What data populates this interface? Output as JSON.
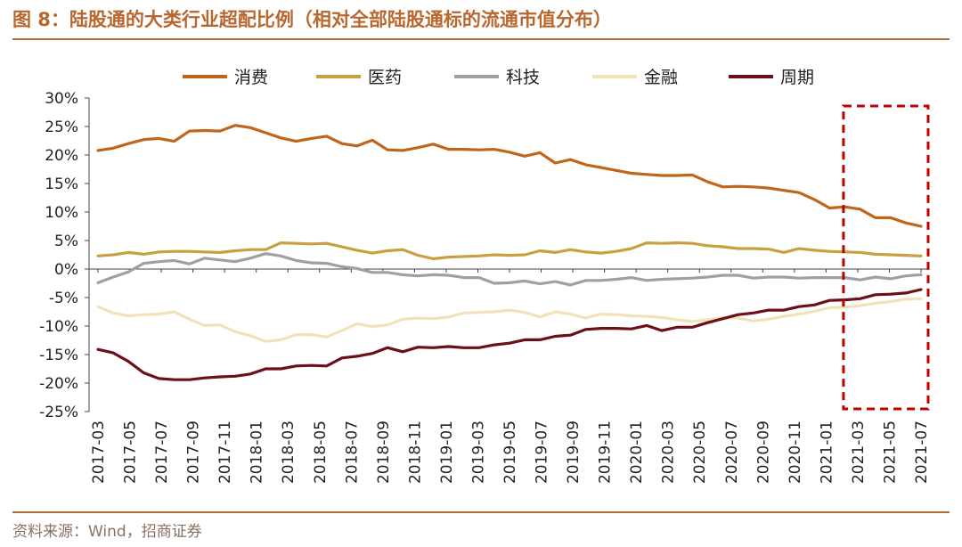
{
  "header": {
    "title": "图 8：陆股通的大类行业超配比例（相对全部陆股通标的流通市值分布）"
  },
  "footer": {
    "source": "资料来源：Wind，招商证券"
  },
  "chart_data": {
    "type": "line",
    "title": "",
    "xlabel": "",
    "ylabel": "",
    "ylim": [
      -25,
      30
    ],
    "y_tick_step": 5,
    "y_ticks": [
      "30%",
      "25%",
      "20%",
      "15%",
      "10%",
      "5%",
      "0%",
      "-5%",
      "-10%",
      "-15%",
      "-20%",
      "-25%"
    ],
    "x_tick_labels": [
      "2017-03",
      "2017-05",
      "2017-07",
      "2017-09",
      "2017-11",
      "2018-01",
      "2018-03",
      "2018-05",
      "2018-07",
      "2018-09",
      "2018-11",
      "2019-01",
      "2019-03",
      "2019-05",
      "2019-07",
      "2019-09",
      "2019-11",
      "2020-01",
      "2020-03",
      "2020-05",
      "2020-07",
      "2020-09",
      "2020-11",
      "2021-01",
      "2021-03",
      "2021-05",
      "2021-07"
    ],
    "legend_position": "top",
    "grid": false,
    "x_start": "2017-03",
    "x_end": "2021-07",
    "highlight": {
      "from": "2021-03",
      "to": "2021-07",
      "color": "#c00000",
      "style": "dashed"
    },
    "series": [
      {
        "name": "消费",
        "color": "#c0651a",
        "values": [
          20.8,
          21.2,
          22,
          22.7,
          22.9,
          22.4,
          24.2,
          24.3,
          24.2,
          25.2,
          24.8,
          23.9,
          23,
          22.4,
          22.9,
          23.3,
          22,
          21.6,
          22.6,
          20.9,
          20.8,
          21.3,
          21.9,
          21,
          21,
          20.9,
          21,
          20.5,
          19.8,
          20.4,
          18.6,
          19.2,
          18.3,
          17.8,
          17.3,
          16.8,
          16.6,
          16.4,
          16.4,
          16.5,
          15.3,
          14.4,
          14.5,
          14.4,
          14.2,
          13.8,
          13.4,
          12.2,
          10.7,
          10.9,
          10.5,
          9,
          9,
          8.1,
          7.5
        ]
      },
      {
        "name": "医药",
        "color": "#c8a040",
        "values": [
          2.3,
          2.5,
          2.9,
          2.6,
          3,
          3.1,
          3.1,
          3,
          2.9,
          3.2,
          3.4,
          3.4,
          4.6,
          4.5,
          4.4,
          4.5,
          3.9,
          3.3,
          2.8,
          3.2,
          3.4,
          2.4,
          1.8,
          2.1,
          2.2,
          2.3,
          2.5,
          2.4,
          2.5,
          3.2,
          2.9,
          3.4,
          3,
          2.8,
          3.1,
          3.6,
          4.6,
          4.5,
          4.6,
          4.5,
          4.1,
          3.9,
          3.6,
          3.6,
          3.5,
          2.9,
          3.6,
          3.3,
          3.1,
          3,
          2.9,
          2.6,
          2.5,
          2.4,
          2.3
        ]
      },
      {
        "name": "科技",
        "color": "#a0a0a0",
        "values": [
          -2.4,
          -1.4,
          -0.5,
          1,
          1.3,
          1.5,
          0.9,
          1.9,
          1.6,
          1.3,
          1.9,
          2.7,
          2.3,
          1.5,
          1.1,
          1,
          0.4,
          0.1,
          -0.6,
          -0.6,
          -1,
          -1.2,
          -1,
          -1.1,
          -1.5,
          -1.5,
          -2.5,
          -2.4,
          -2.1,
          -2.6,
          -2.2,
          -2.8,
          -2,
          -2,
          -1.8,
          -1.5,
          -2,
          -1.8,
          -1.7,
          -1.6,
          -1.4,
          -1.1,
          -1.1,
          -1.6,
          -1.4,
          -1.4,
          -1.6,
          -1.5,
          -1.5,
          -1.5,
          -1.9,
          -1.4,
          -1.7,
          -1.2,
          -1
        ]
      },
      {
        "name": "金融",
        "color": "#f2e2b8",
        "values": [
          -6.6,
          -7.7,
          -8.2,
          -8,
          -7.9,
          -7.5,
          -8.8,
          -9.9,
          -9.8,
          -11,
          -11.7,
          -12.7,
          -12.4,
          -11.5,
          -11.5,
          -11.9,
          -10.8,
          -9.6,
          -10.1,
          -9.8,
          -8.8,
          -8.6,
          -8.7,
          -8.4,
          -7.7,
          -7.6,
          -7.5,
          -7.2,
          -7.6,
          -8.4,
          -7.5,
          -7.9,
          -8.6,
          -7.9,
          -8,
          -8.2,
          -8.3,
          -8.5,
          -8.9,
          -9.2,
          -8.9,
          -8.5,
          -8.6,
          -9.1,
          -8.8,
          -8.3,
          -7.9,
          -7.4,
          -6.8,
          -6.7,
          -6.4,
          -6,
          -5.7,
          -5.3,
          -5.2
        ]
      },
      {
        "name": "周期",
        "color": "#6b0f1a",
        "values": [
          -14.1,
          -14.7,
          -16.2,
          -18.2,
          -19.2,
          -19.4,
          -19.4,
          -19.1,
          -18.9,
          -18.8,
          -18.4,
          -17.5,
          -17.5,
          -17,
          -16.9,
          -17,
          -15.6,
          -15.3,
          -14.8,
          -13.8,
          -14.5,
          -13.7,
          -13.8,
          -13.6,
          -13.8,
          -13.8,
          -13.3,
          -13,
          -12.4,
          -12.4,
          -11.8,
          -11.6,
          -10.6,
          -10.4,
          -10.4,
          -10.5,
          -9.9,
          -10.8,
          -10.2,
          -10.2,
          -9.4,
          -8.7,
          -8,
          -7.7,
          -7.2,
          -7.2,
          -6.6,
          -6.3,
          -5.5,
          -5.4,
          -5.2,
          -4.5,
          -4.4,
          -4.2,
          -3.6
        ]
      }
    ]
  }
}
